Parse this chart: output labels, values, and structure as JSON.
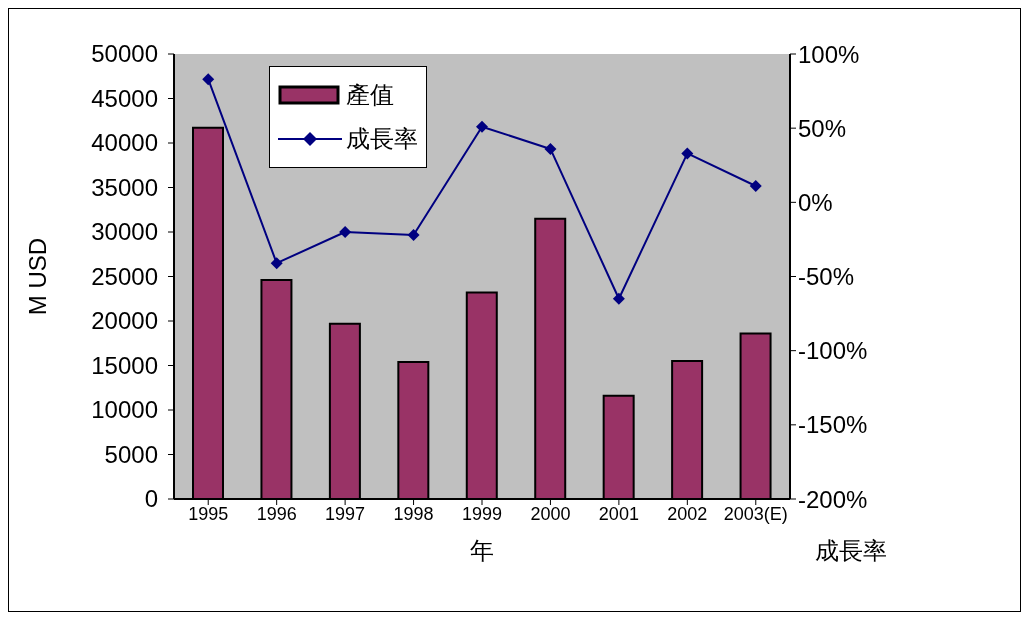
{
  "chart_data": {
    "type": "bar",
    "xlabel": "年",
    "ylabel": "M USD",
    "y2label": "成長率",
    "categories": [
      "1995",
      "1996",
      "1997",
      "1998",
      "1999",
      "2000",
      "2001",
      "2002",
      "2003(E)"
    ],
    "series": [
      {
        "name": "產值",
        "color": "#993366",
        "values": [
          41700,
          24600,
          19700,
          15400,
          23200,
          31500,
          11600,
          15500,
          18600
        ]
      },
      {
        "name": "成長率",
        "type": "line",
        "axis": "y2",
        "color": "#000080",
        "values": [
          83,
          -41,
          -20,
          -22,
          51,
          36,
          -65,
          33,
          11
        ]
      }
    ],
    "ylim": [
      0,
      50000
    ],
    "yticks": [
      0,
      5000,
      10000,
      15000,
      20000,
      25000,
      30000,
      35000,
      40000,
      45000,
      50000
    ],
    "y2lim": [
      -200,
      100
    ],
    "y2ticks": [
      {
        "value": -200,
        "label": "-200%"
      },
      {
        "value": -150,
        "label": "-150%"
      },
      {
        "value": -100,
        "label": "-100%"
      },
      {
        "value": -50,
        "label": "-50%"
      },
      {
        "value": 0,
        "label": "0%"
      },
      {
        "value": 50,
        "label": "50%"
      },
      {
        "value": 100,
        "label": "100%"
      }
    ],
    "legend": "top left",
    "marker": "diamond",
    "grid": false
  }
}
